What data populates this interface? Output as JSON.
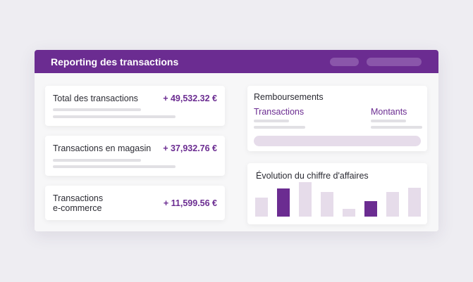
{
  "header": {
    "title": "Reporting des transactions"
  },
  "stats": [
    {
      "label": "Total des transactions",
      "value": "+ 49,532.32 €"
    },
    {
      "label": "Transactions en magasin",
      "value": "+ 37,932.76 €"
    },
    {
      "label_line1": "Transactions",
      "label_line2": "e-commerce",
      "value": "+ 11,599.56 €"
    }
  ],
  "refunds": {
    "title": "Remboursements",
    "col1": "Transactions",
    "col2": "Montants"
  },
  "revenue": {
    "title": "Évolution du chiffre d'affaires"
  },
  "colors": {
    "accent": "#6b2c91",
    "light": "#e6dcea"
  },
  "chart_data": {
    "type": "bar",
    "categories": [
      "1",
      "2",
      "3",
      "4",
      "5",
      "6",
      "7",
      "8"
    ],
    "values": [
      27,
      40,
      49,
      35,
      11,
      22,
      35,
      41
    ],
    "highlighted": [
      false,
      true,
      false,
      false,
      false,
      true,
      false,
      false
    ],
    "ylim": [
      0,
      50
    ],
    "grid": false
  }
}
